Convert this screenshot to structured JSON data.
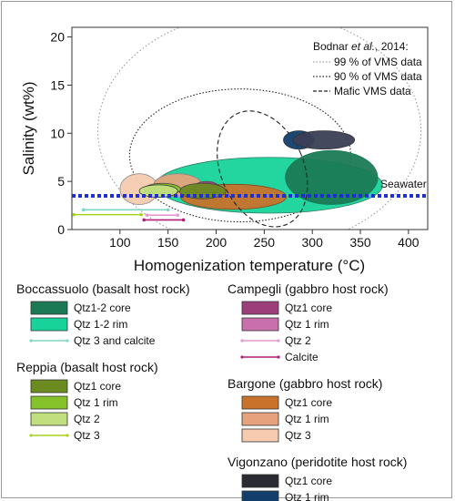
{
  "chart_data": {
    "type": "scatter",
    "xlabel": "Homogenization temperature (°C)",
    "ylabel": "Salinity (wt%)",
    "xlim": [
      50,
      420
    ],
    "ylim": [
      0,
      21
    ],
    "xticks": [
      100,
      150,
      200,
      250,
      300,
      350,
      400
    ],
    "yticks": [
      0,
      5,
      10,
      15,
      20
    ],
    "reference": {
      "title": "Bodnar et al., 2014:",
      "entries": [
        {
          "label": "99 % of VMS data",
          "style": "dotted-grey"
        },
        {
          "label": "90 % of VMS data",
          "style": "dotted-black"
        },
        {
          "label": "Mafic VMS data",
          "style": "dashed-black"
        }
      ]
    },
    "seawater": {
      "label": "Seawater",
      "salinity": 3.5,
      "color": "#1f2fd6"
    },
    "groups": [
      {
        "title": "Boccassuolo (basalt host rock)",
        "items": [
          {
            "label": "Qtz1-2 core",
            "kind": "box",
            "color": "#1b7a55"
          },
          {
            "label": "Qtz 1-2 rim",
            "kind": "box",
            "color": "#17d39a"
          },
          {
            "label": "Qtz 3 and calcite",
            "kind": "line",
            "color": "#7fd6c6"
          }
        ]
      },
      {
        "title": "Reppia (basalt host rock)",
        "items": [
          {
            "label": "Qtz1 core",
            "kind": "box",
            "color": "#6b8a1f"
          },
          {
            "label": "Qtz 1 rim",
            "kind": "box",
            "color": "#86c22a"
          },
          {
            "label": "Qtz 2",
            "kind": "box",
            "color": "#c2df7f"
          },
          {
            "label": "Qtz 3",
            "kind": "line",
            "color": "#a5d41d"
          }
        ]
      },
      {
        "title": "Campegli (gabbro host rock)",
        "items": [
          {
            "label": "Qtz1 core",
            "kind": "box",
            "color": "#9b3e7a"
          },
          {
            "label": "Qtz 1 rim",
            "kind": "box",
            "color": "#c96fae"
          },
          {
            "label": "Qtz 2",
            "kind": "line",
            "color": "#e59ad4"
          },
          {
            "label": "Calcite",
            "kind": "line",
            "color": "#b31f78"
          }
        ]
      },
      {
        "title": "Bargone (gabbro host rock)",
        "items": [
          {
            "label": "Qtz1 core",
            "kind": "box",
            "color": "#c9722c"
          },
          {
            "label": "Qtz 1 rim",
            "kind": "box",
            "color": "#e6a27c"
          },
          {
            "label": "Qtz 3",
            "kind": "box",
            "color": "#f6cbb0"
          }
        ]
      },
      {
        "title": "Vigonzano (peridotite host rock)",
        "items": [
          {
            "label": "Qtz1 core",
            "kind": "box",
            "color": "#2b2b33"
          },
          {
            "label": "Qtz 1 rim",
            "kind": "box",
            "color": "#113e6b"
          }
        ]
      }
    ],
    "fields": [
      {
        "name": "Bodnar 99%",
        "cx": 245,
        "cy": 10.3,
        "rx": 168,
        "ry": 12.3,
        "rot": 0,
        "fill": "none",
        "stroke": "#9a9a9a",
        "dash": "1.5,2.5"
      },
      {
        "name": "Bodnar 90%",
        "cx": 225,
        "cy": 7.7,
        "rx": 115,
        "ry": 6.9,
        "rot": 0,
        "fill": "none",
        "stroke": "#222222",
        "dash": "1.5,2"
      },
      {
        "name": "Boccassuolo Qtz 1-2 rim",
        "cx": 255,
        "cy": 4.6,
        "rx": 118,
        "ry": 2.9,
        "rot": 0,
        "fill": "#17d39a",
        "stroke": "#2e7d60",
        "dash": ""
      },
      {
        "name": "Boccassuolo Qtz1-2 core",
        "cx": 320,
        "cy": 5.4,
        "rx": 48,
        "ry": 2.8,
        "rot": 0,
        "fill": "#1b7a55",
        "stroke": "#1b7a55",
        "dash": ""
      },
      {
        "name": "Bargone Qtz 3",
        "cx": 120,
        "cy": 4.2,
        "rx": 20,
        "ry": 1.6,
        "rot": 0,
        "fill": "#f6cbb0",
        "stroke": "#888888",
        "dash": ""
      },
      {
        "name": "Bargone Qtz 1 rim",
        "cx": 160,
        "cy": 4.6,
        "rx": 25,
        "ry": 1.2,
        "rot": 0,
        "fill": "#e6a27c",
        "stroke": "#888888",
        "dash": ""
      },
      {
        "name": "Bargone Qtz1 core",
        "cx": 218,
        "cy": 3.4,
        "rx": 55,
        "ry": 1.3,
        "rot": 0,
        "fill": "#c9722c",
        "stroke": "#7a4a20",
        "dash": ""
      },
      {
        "name": "Campegli Qtz1 core",
        "cx": 190,
        "cy": 4.3,
        "rx": 14,
        "ry": 0.7,
        "rot": 0,
        "fill": "#9b3e7a",
        "stroke": "#555555",
        "dash": ""
      },
      {
        "name": "Reppia Qtz1 core",
        "cx": 186,
        "cy": 4.0,
        "rx": 24,
        "ry": 0.8,
        "rot": 0,
        "fill": "#6b8a1f",
        "stroke": "#444444",
        "dash": ""
      },
      {
        "name": "Reppia Qtz 1 rim",
        "cx": 144,
        "cy": 4.2,
        "rx": 19,
        "ry": 0.6,
        "rot": 0,
        "fill": "#86c22a",
        "stroke": "#444444",
        "dash": ""
      },
      {
        "name": "Reppia Qtz 2",
        "cx": 140,
        "cy": 4.0,
        "rx": 20,
        "ry": 0.65,
        "rot": 0,
        "fill": "#c2df7f",
        "stroke": "#333333",
        "dash": ""
      },
      {
        "name": "Bodnar mafic VMS",
        "cx": 248,
        "cy": 6.3,
        "rx": 43,
        "ry": 6.3,
        "rot": -24,
        "fill": "none",
        "stroke": "#222222",
        "dash": "5,3"
      },
      {
        "name": "Vigonzano Qtz 1 rim",
        "cx": 286,
        "cy": 9.3,
        "rx": 16,
        "ry": 0.95,
        "rot": 0,
        "fill": "#113e6b",
        "stroke": "#333333",
        "dash": ""
      },
      {
        "name": "Vigonzano Qtz1 core",
        "cx": 312,
        "cy": 9.3,
        "rx": 32,
        "ry": 0.95,
        "rot": 0,
        "fill": "#3a3f55",
        "stroke": "#333333",
        "dash": ""
      }
    ],
    "ranges": [
      {
        "name": "Boccassuolo Qtz 3 and calcite",
        "x": [
          62,
          150
        ],
        "y": 2.05,
        "color": "#7fd6c6"
      },
      {
        "name": "Campegli Qtz 2",
        "x": [
          128,
          160
        ],
        "y": 1.5,
        "color": "#e59ad4"
      },
      {
        "name": "Reppia Qtz 3",
        "x": [
          52,
          122
        ],
        "y": 1.55,
        "color": "#a5d41d"
      },
      {
        "name": "Campegli Calcite",
        "x": [
          125,
          166
        ],
        "y": 1.0,
        "color": "#b31f78"
      }
    ]
  }
}
